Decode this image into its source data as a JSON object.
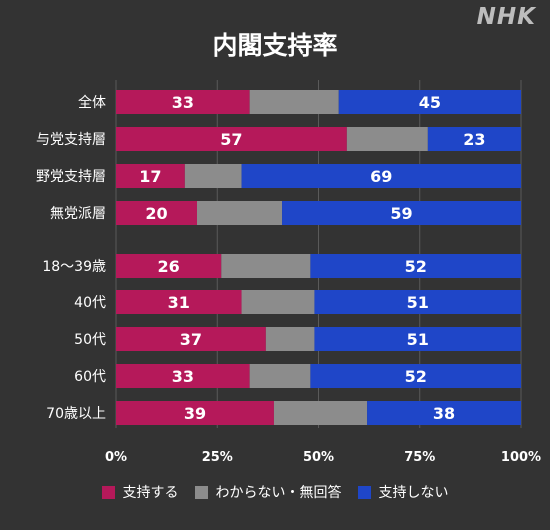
{
  "logo": "NHK",
  "colors": {
    "background": "#333333",
    "support": "#b5195a",
    "undecided": "#8c8c8c",
    "not_support": "#1f46c8",
    "grid": "#5a5a5a"
  },
  "chart_data": {
    "type": "bar",
    "orientation": "horizontal",
    "stacked": true,
    "title": "内閣支持率",
    "xlim": [
      0,
      100
    ],
    "xticks": [
      "0%",
      "25%",
      "50%",
      "75%",
      "100%"
    ],
    "grid": true,
    "legend_position": "bottom",
    "categories": [
      "全体",
      "与党支持層",
      "野党支持層",
      "無党派層",
      "18〜39歳",
      "40代",
      "50代",
      "60代",
      "70歳以上"
    ],
    "series": [
      {
        "name": "支持する",
        "values": [
          33,
          57,
          17,
          20,
          26,
          31,
          37,
          33,
          39
        ],
        "labels": [
          "33",
          "57",
          "17",
          "20",
          "26",
          "31",
          "37",
          "33",
          "39"
        ]
      },
      {
        "name": "わからない・無回答",
        "values": [
          22,
          20,
          14,
          21,
          22,
          18,
          12,
          15,
          23
        ],
        "labels": [
          "",
          "",
          "",
          "",
          "",
          "",
          "",
          "",
          ""
        ]
      },
      {
        "name": "支持しない",
        "values": [
          45,
          23,
          69,
          59,
          52,
          51,
          51,
          52,
          38
        ],
        "labels": [
          "45",
          "23",
          "69",
          "59",
          "52",
          "51",
          "51",
          "52",
          "38"
        ]
      }
    ]
  }
}
